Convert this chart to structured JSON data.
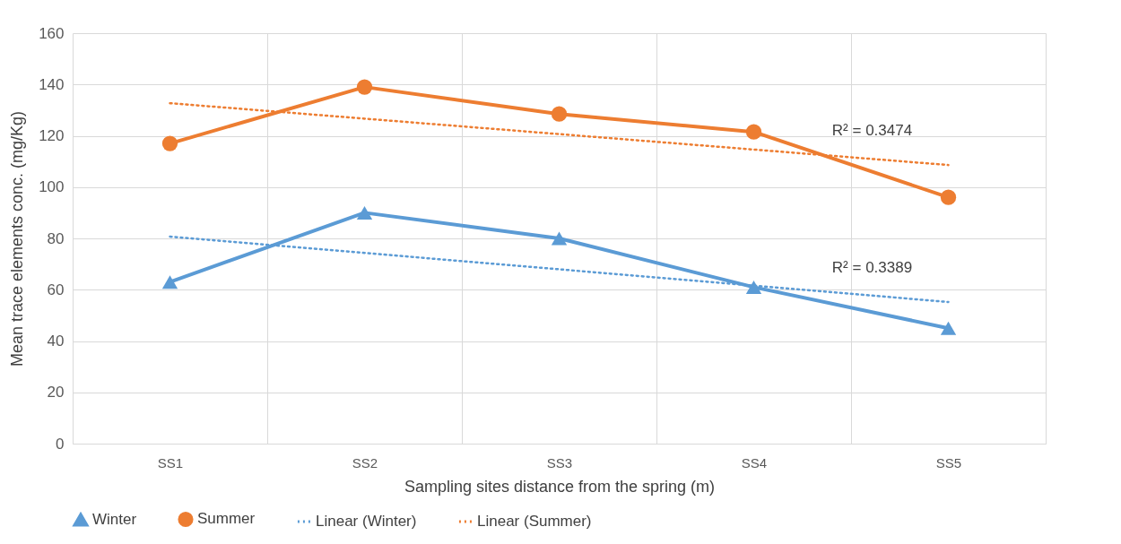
{
  "chart_data": {
    "type": "line",
    "xlabel": "Sampling sites distance from the spring (m)",
    "ylabel": "Mean trace elements conc. (mg/Kg)",
    "categories": [
      "SS1",
      "SS2",
      "SS3",
      "SS4",
      "SS5"
    ],
    "series": [
      {
        "name": "Winter",
        "color": "#5b9bd5",
        "marker": "triangle",
        "line_style": "solid",
        "values": [
          63,
          90,
          80,
          61,
          45
        ]
      },
      {
        "name": "Summer",
        "color": "#ed7d31",
        "marker": "circle",
        "line_style": "solid",
        "values": [
          117,
          139,
          128.5,
          121.5,
          96
        ]
      },
      {
        "name": "Linear (Winter)",
        "color": "#5b9bd5",
        "marker": "none",
        "line_style": "dotted",
        "x": [
          "SS1",
          "SS5"
        ],
        "values": [
          80.7,
          55.2
        ]
      },
      {
        "name": "Linear (Summer)",
        "color": "#ed7d31",
        "marker": "none",
        "line_style": "dotted",
        "x": [
          "SS1",
          "SS5"
        ],
        "values": [
          132.7,
          108.6
        ]
      }
    ],
    "annotations": [
      "R² = 0.3389",
      "R² = 0.3474"
    ],
    "ylim": [
      0,
      160
    ],
    "yticks": [
      0,
      20,
      40,
      60,
      80,
      100,
      120,
      140,
      160
    ],
    "grid": true,
    "legend": "bottom"
  }
}
